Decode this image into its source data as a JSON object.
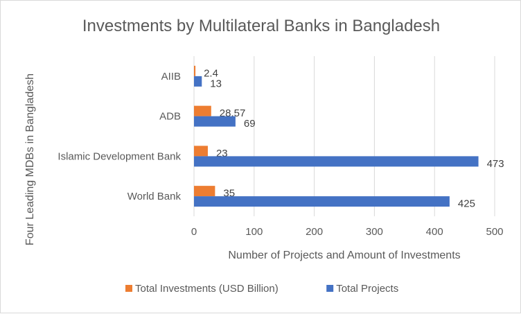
{
  "chart_data": {
    "type": "bar",
    "orientation": "horizontal",
    "title": "Investments by Multilateral Banks in Bangladesh",
    "xlabel": "Number of Projects and Amount of Investments",
    "ylabel": "Four Leading MDBs in Bangladesh",
    "categories": [
      "AIIB",
      "ADB",
      "Islamic Development Bank",
      "World Bank"
    ],
    "series": [
      {
        "name": "Total Investments (USD Billion)",
        "color": "#ED7D31",
        "values": [
          2.4,
          28.57,
          23,
          35
        ]
      },
      {
        "name": "Total Projects",
        "color": "#4472C4",
        "values": [
          13,
          69,
          473,
          425
        ]
      }
    ],
    "xlim": [
      0,
      500
    ],
    "xticks": [
      0,
      100,
      200,
      300,
      400,
      500
    ],
    "grid": "vertical",
    "legend": "bottom"
  }
}
